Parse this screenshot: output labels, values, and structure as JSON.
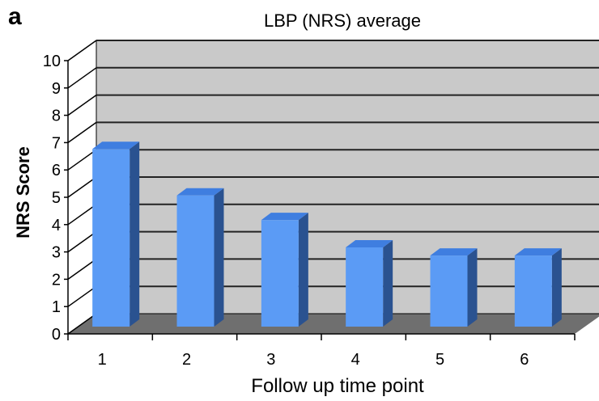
{
  "panel_label": "a",
  "chart_data": {
    "type": "bar",
    "title": "LBP (NRS) average",
    "xlabel": "Follow up time point",
    "ylabel": "NRS Score",
    "categories": [
      "1",
      "2",
      "3",
      "4",
      "5",
      "6"
    ],
    "values": [
      6.5,
      4.8,
      3.9,
      2.9,
      2.6,
      2.6
    ],
    "ylim": [
      0,
      10
    ],
    "yticks": [
      0,
      1,
      2,
      3,
      4,
      5,
      6,
      7,
      8,
      9,
      10
    ],
    "grid": true,
    "style": "3d-column",
    "colors": {
      "bar_front": "#5b9bf5",
      "bar_top": "#3f7ee0",
      "bar_side": "#2a5290",
      "wall": "#c9c9c9",
      "floor": "#6f6f6f",
      "gridline": "#222222"
    }
  }
}
